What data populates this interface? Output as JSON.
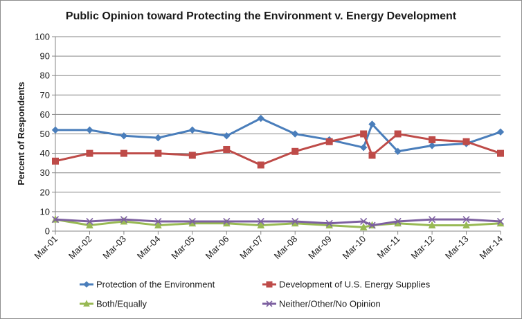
{
  "chart_data": {
    "type": "line",
    "title": "Public Opinion toward Protecting the Environment v. Energy Development",
    "xlabel": "",
    "ylabel": "Percent of Respondents",
    "ylim": [
      0,
      100
    ],
    "yticks": [
      0,
      10,
      20,
      30,
      40,
      50,
      60,
      70,
      80,
      90,
      100
    ],
    "grid": true,
    "legend_position": "bottom",
    "categories": [
      "Mar-01",
      "Mar-02",
      "Mar-03",
      "Mar-04",
      "Mar-05",
      "Mar-06",
      "Mar-07",
      "Mar-08",
      "Mar-09",
      "Mar-10",
      "Mar-11",
      "Mar-12",
      "Mar-13",
      "Mar-14"
    ],
    "x": [
      2001,
      2002,
      2003,
      2004,
      2005,
      2006,
      2007,
      2008,
      2009,
      2010,
      2010.25,
      2011,
      2012,
      2013,
      2014
    ],
    "series": [
      {
        "name": "Protection of the Environment",
        "color": "#4a7ebb",
        "marker": "diamond",
        "values": [
          52,
          52,
          49,
          48,
          52,
          49,
          58,
          50,
          47,
          43,
          55,
          41,
          44,
          45,
          51
        ]
      },
      {
        "name": "Development of U.S. Energy Supplies",
        "color": "#be4b48",
        "marker": "square",
        "values": [
          36,
          40,
          40,
          40,
          39,
          42,
          34,
          41,
          46,
          50,
          39,
          50,
          47,
          46,
          40
        ]
      },
      {
        "name": "Both/Equally",
        "color": "#98b954",
        "marker": "triangle",
        "values": [
          6,
          3,
          5,
          3,
          4,
          4,
          3,
          4,
          3,
          2,
          3,
          4,
          3,
          3,
          4
        ]
      },
      {
        "name": "Neither/Other/No Opinion",
        "color": "#7d60a0",
        "marker": "x",
        "values": [
          6,
          5,
          6,
          5,
          5,
          5,
          5,
          5,
          4,
          5,
          3,
          5,
          6,
          6,
          5
        ]
      }
    ]
  }
}
